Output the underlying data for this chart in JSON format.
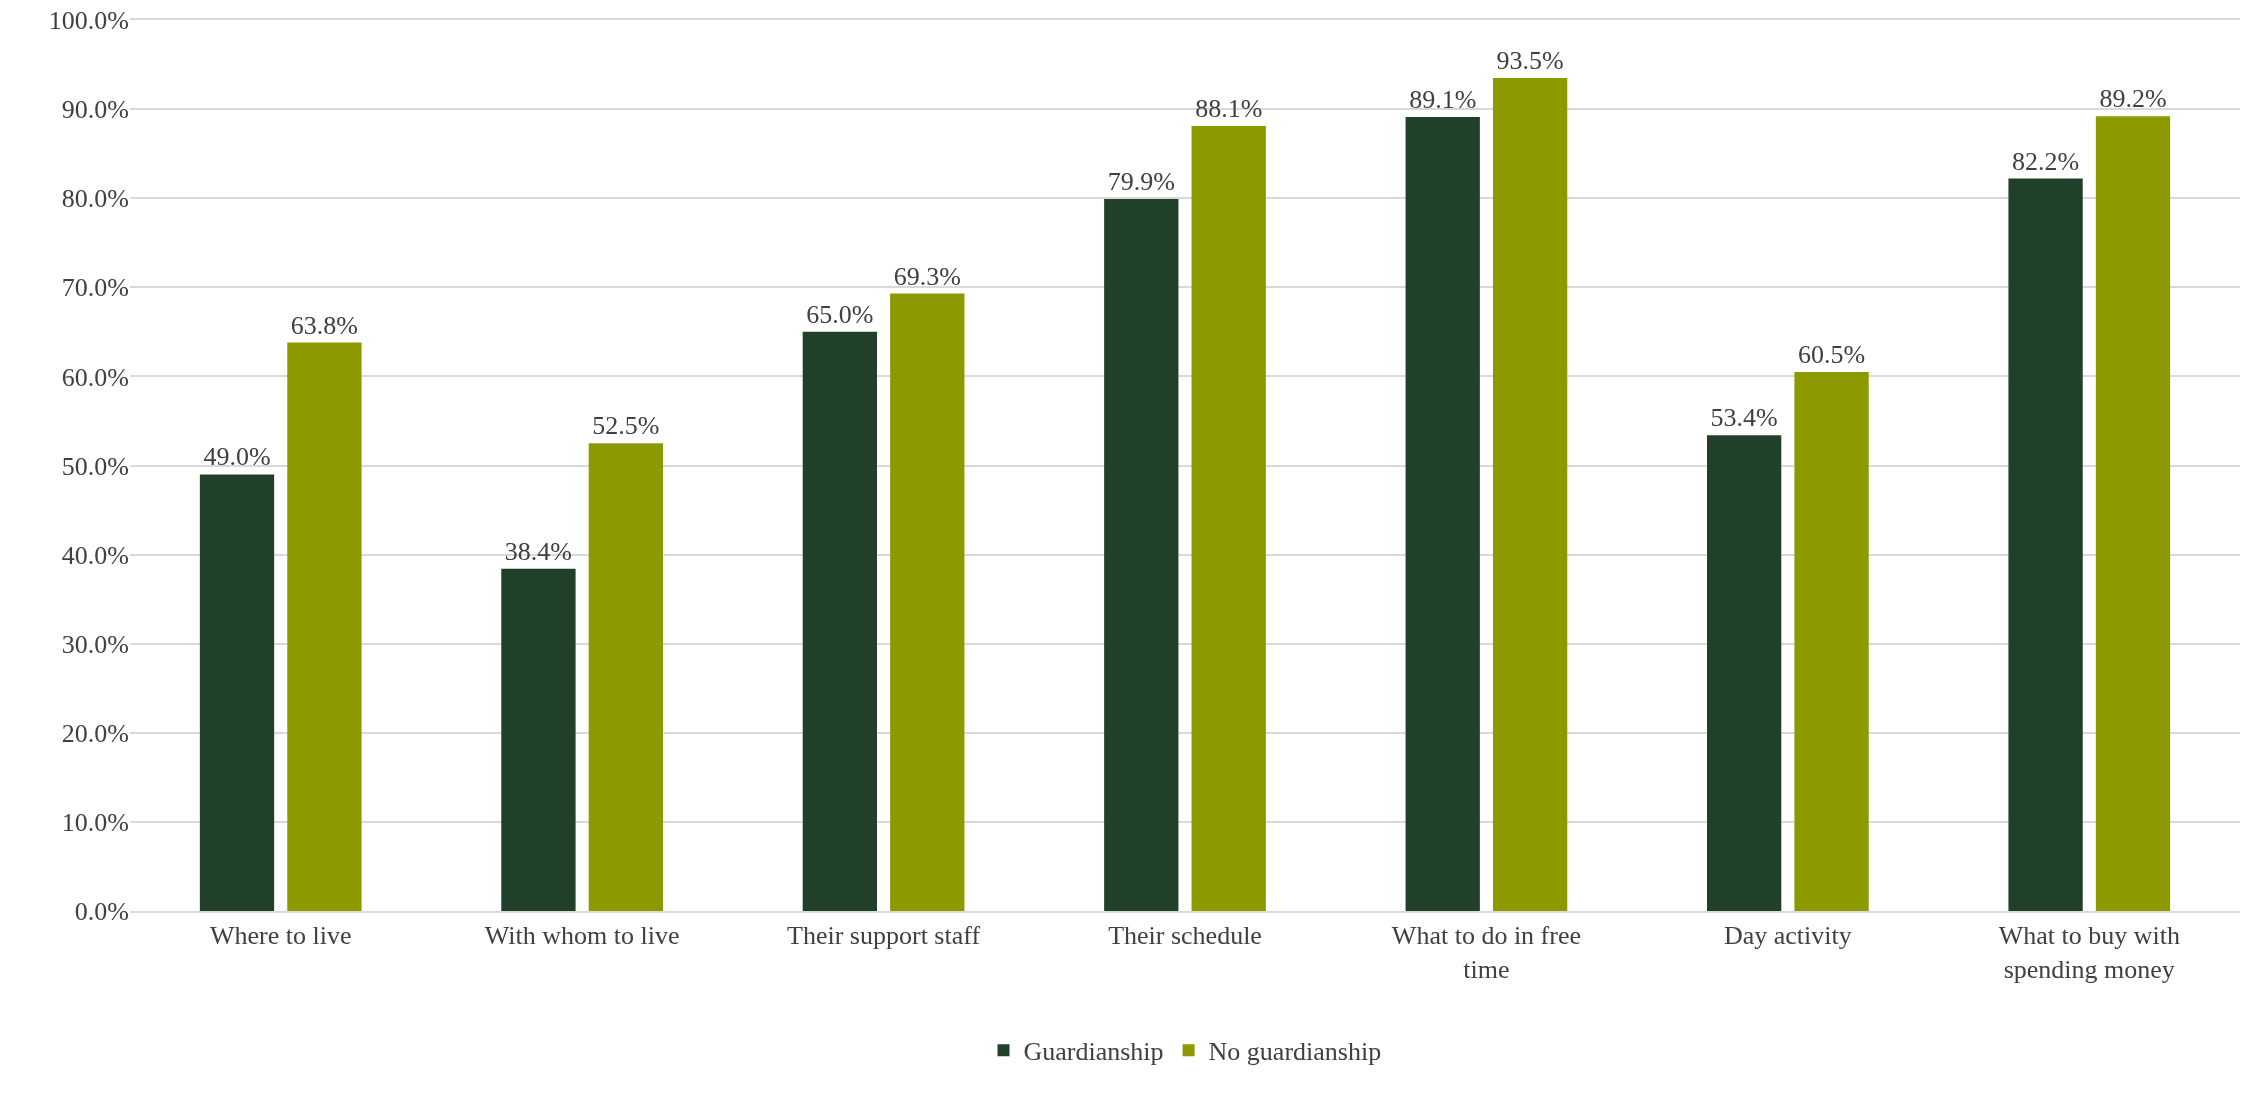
{
  "chart_data": {
    "type": "bar",
    "categories": [
      "Where to live",
      "With whom to live",
      "Their support staff",
      "Their schedule",
      "What to do in free time",
      "Day activity",
      "What to buy with spending money"
    ],
    "series": [
      {
        "name": "Guardianship",
        "color": "#20402a",
        "values": [
          49.0,
          38.4,
          65.0,
          79.9,
          89.1,
          53.4,
          82.2
        ],
        "value_labels": [
          "49.0%",
          "38.4%",
          "65.0%",
          "79.9%",
          "89.1%",
          "53.4%",
          "82.2%"
        ]
      },
      {
        "name": "No guardianship",
        "color": "#8c9a00",
        "values": [
          63.8,
          52.5,
          69.3,
          88.1,
          93.5,
          60.5,
          89.2
        ],
        "value_labels": [
          "63.8%",
          "52.5%",
          "69.3%",
          "88.1%",
          "93.5%",
          "60.5%",
          "89.2%"
        ]
      }
    ],
    "ylim": [
      0,
      100
    ],
    "yticks": [
      {
        "value": 0,
        "label": "0.0%"
      },
      {
        "value": 10,
        "label": "10.0%"
      },
      {
        "value": 20,
        "label": "20.0%"
      },
      {
        "value": 30,
        "label": "30.0%"
      },
      {
        "value": 40,
        "label": "40.0%"
      },
      {
        "value": 50,
        "label": "50.0%"
      },
      {
        "value": 60,
        "label": "60.0%"
      },
      {
        "value": 70,
        "label": "70.0%"
      },
      {
        "value": 80,
        "label": "80.0%"
      },
      {
        "value": 90,
        "label": "90.0%"
      },
      {
        "value": 100,
        "label": "100.0%"
      }
    ],
    "grid": "y",
    "legend": "bottom"
  }
}
